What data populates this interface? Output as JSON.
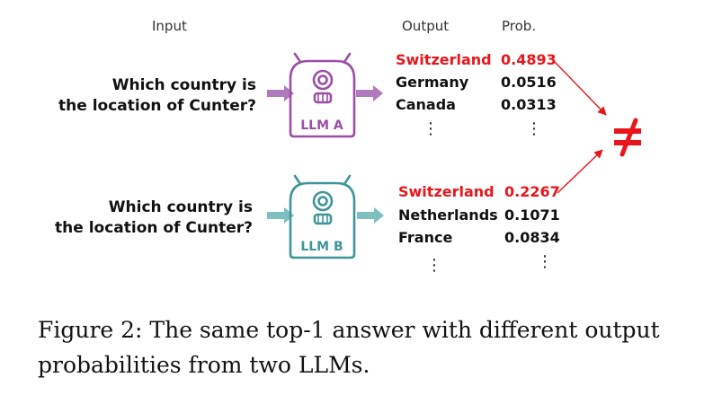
{
  "headers": {
    "input": "Input",
    "output": "Output",
    "prob": "Prob."
  },
  "colors": {
    "llm_a": "#9b4fa6",
    "llm_b": "#3f9598",
    "arrow_a": "#b07bbd",
    "arrow_b": "#7fbfc2",
    "highlight": "#e8161b",
    "not_equal": "#e8161b"
  },
  "icons": {
    "robot": "robot-icon",
    "not_equal": "not-equal-icon"
  },
  "panels": [
    {
      "question_line1": "Which country is",
      "question_line2": "the location of Cunter?",
      "model": "LLM A",
      "outputs": [
        {
          "answer": "Switzerland",
          "prob": "0.4893"
        },
        {
          "answer": "Germany",
          "prob": "0.0516"
        },
        {
          "answer": "Canada",
          "prob": "0.0313"
        }
      ],
      "ellipsis": "⋮"
    },
    {
      "question_line1": "Which country is",
      "question_line2": "the location of Cunter?",
      "model": "LLM B",
      "outputs": [
        {
          "answer": "Switzerland",
          "prob": "0.2267"
        },
        {
          "answer": "Netherlands",
          "prob": "0.1071"
        },
        {
          "answer": "France",
          "prob": "0.0834"
        }
      ],
      "ellipsis": "⋮"
    }
  ],
  "caption": "Figure 2: The same top-1 answer with different output probabilities from two LLMs."
}
